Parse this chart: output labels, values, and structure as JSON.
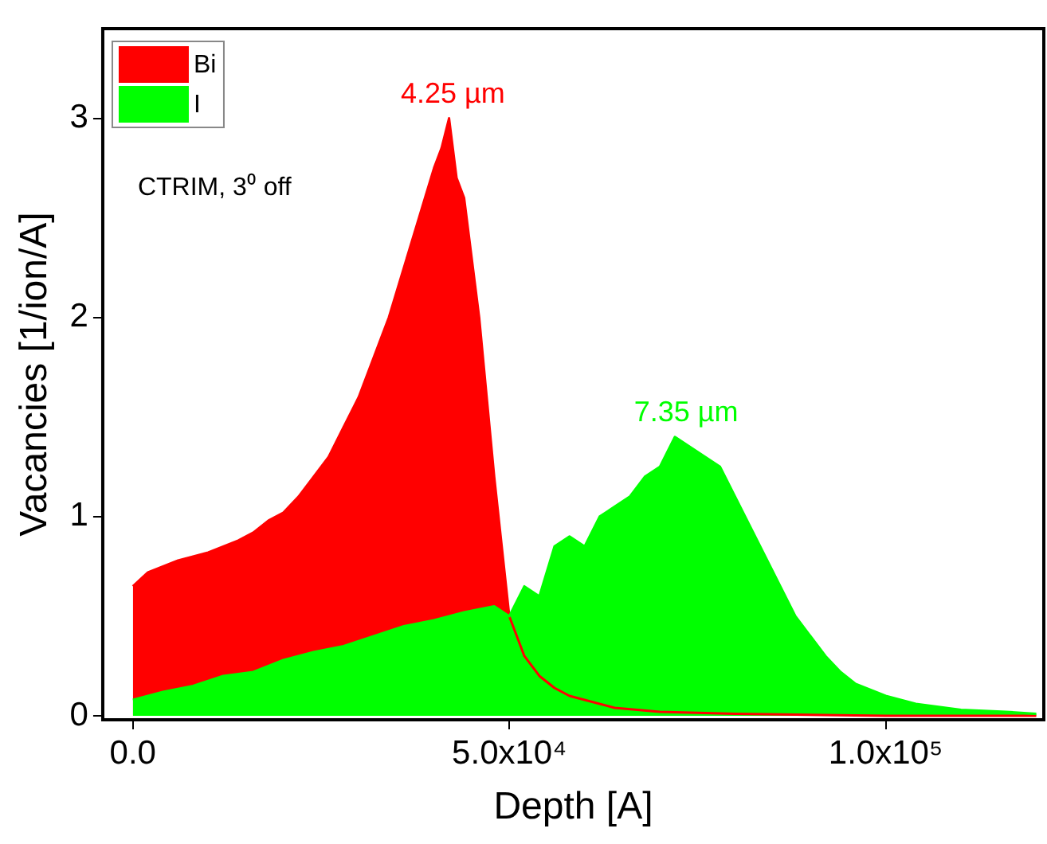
{
  "chart_data": {
    "type": "area",
    "xlabel": "Depth [A]",
    "ylabel": "Vacancies [1/ion/A]",
    "xlim": [
      -4000,
      121000
    ],
    "ylim": [
      -0.02,
      3.45
    ],
    "xticks": [
      {
        "value": 0,
        "label": "0.0"
      },
      {
        "value": 50000,
        "label": "5.0x10⁴"
      },
      {
        "value": 100000,
        "label": "1.0x10⁵"
      }
    ],
    "yticks": [
      0,
      1,
      2,
      3
    ],
    "grid": false,
    "legend": "top left",
    "marker": "none",
    "annotations": [
      {
        "text": "4.25 µm",
        "x": 42500,
        "y": 3.0
      },
      {
        "text": "7.35 µm",
        "x": 73500,
        "y": 1.4
      },
      "CTRIM, 3⁰ off"
    ],
    "series": [
      {
        "name": "Bi",
        "color": "#ff0000",
        "x": [
          0,
          2000,
          4000,
          6000,
          8000,
          10000,
          12000,
          14000,
          16000,
          18000,
          20000,
          22000,
          24000,
          26000,
          28000,
          30000,
          32000,
          34000,
          36000,
          38000,
          40000,
          41000,
          42000,
          43000,
          44000,
          46000,
          48000,
          50000,
          52000,
          54000,
          56000,
          58000,
          60000,
          64000,
          70000,
          80000,
          100000,
          120000
        ],
        "values": [
          0.65,
          0.72,
          0.75,
          0.78,
          0.8,
          0.82,
          0.85,
          0.88,
          0.92,
          0.98,
          1.02,
          1.1,
          1.2,
          1.3,
          1.45,
          1.6,
          1.8,
          2.0,
          2.25,
          2.5,
          2.75,
          2.85,
          3.0,
          2.7,
          2.6,
          2.0,
          1.2,
          0.5,
          0.3,
          0.2,
          0.14,
          0.1,
          0.08,
          0.04,
          0.02,
          0.01,
          0,
          0
        ]
      },
      {
        "name": "I",
        "color": "#00ff00",
        "x": [
          0,
          4000,
          8000,
          12000,
          16000,
          20000,
          24000,
          28000,
          32000,
          36000,
          40000,
          44000,
          48000,
          50000,
          52000,
          54000,
          56000,
          58000,
          60000,
          62000,
          64000,
          66000,
          68000,
          70000,
          72000,
          74000,
          76000,
          78000,
          80000,
          82000,
          84000,
          86000,
          88000,
          90000,
          92000,
          94000,
          96000,
          100000,
          104000,
          110000,
          116000,
          120000
        ],
        "values": [
          0.08,
          0.12,
          0.15,
          0.2,
          0.22,
          0.28,
          0.32,
          0.35,
          0.4,
          0.45,
          0.48,
          0.52,
          0.55,
          0.5,
          0.65,
          0.6,
          0.85,
          0.9,
          0.85,
          1.0,
          1.05,
          1.1,
          1.2,
          1.25,
          1.4,
          1.35,
          1.3,
          1.25,
          1.1,
          0.95,
          0.8,
          0.65,
          0.5,
          0.4,
          0.3,
          0.22,
          0.16,
          0.1,
          0.06,
          0.03,
          0.02,
          0.01
        ]
      }
    ]
  }
}
